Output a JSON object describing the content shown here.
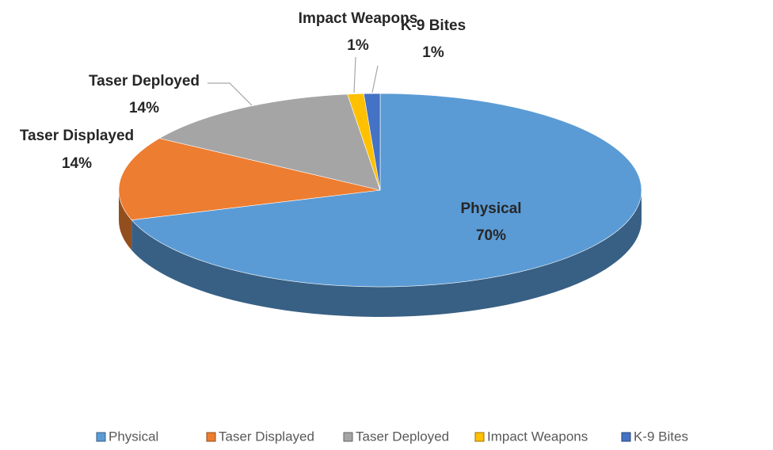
{
  "chart_data": {
    "type": "pie",
    "categories": [
      "Physical",
      "Taser Displayed",
      "Taser Deployed",
      "Impact Weapons",
      "K-9 Bites"
    ],
    "values": [
      70,
      14,
      14,
      1,
      1
    ],
    "value_labels": [
      "70%",
      "14%",
      "14%",
      "1%",
      "1%"
    ],
    "colors": [
      "#5b9bd5",
      "#ed7d31",
      "#a5a5a5",
      "#ffc000",
      "#4472c4"
    ],
    "legend": "bottom"
  }
}
